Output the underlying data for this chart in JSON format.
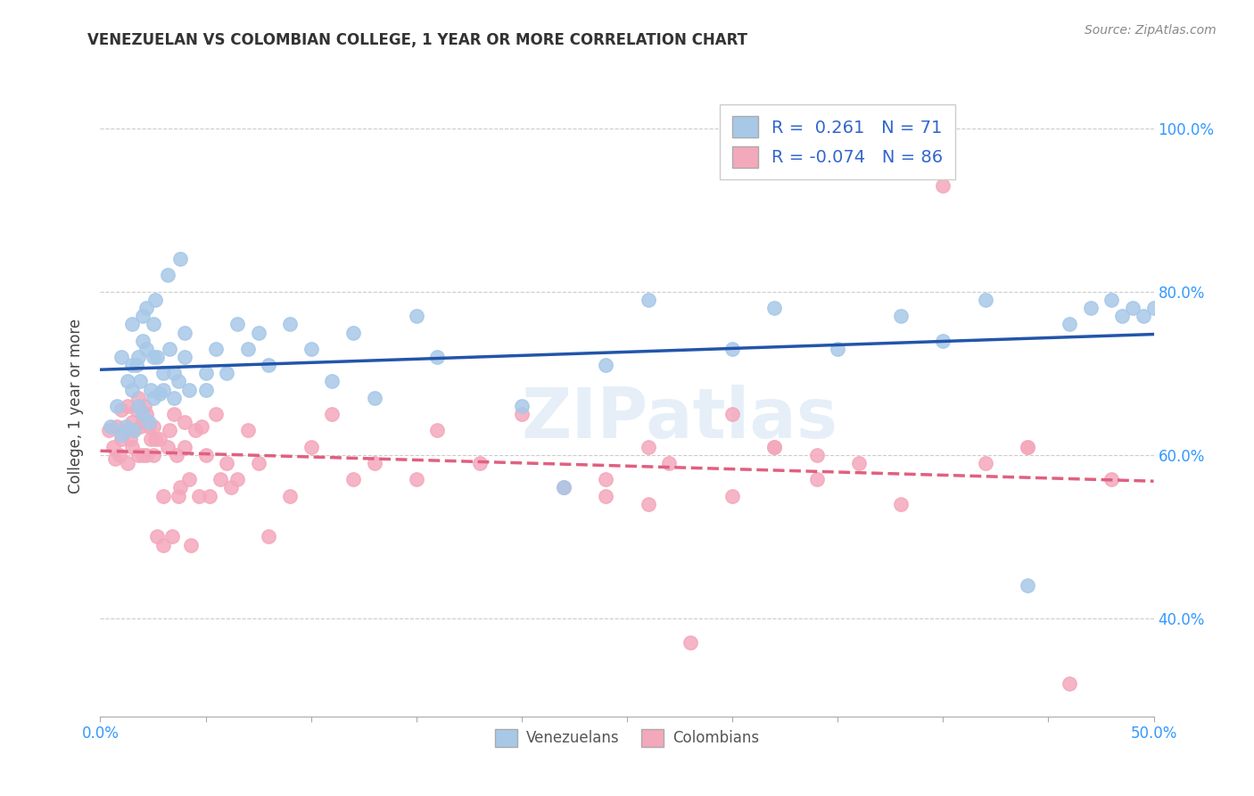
{
  "title": "VENEZUELAN VS COLOMBIAN COLLEGE, 1 YEAR OR MORE CORRELATION CHART",
  "source": "Source: ZipAtlas.com",
  "ylabel": "College, 1 year or more",
  "xlim": [
    0.0,
    0.5
  ],
  "ylim": [
    0.28,
    1.04
  ],
  "legend_R1": "0.261",
  "legend_N1": "71",
  "legend_R2": "-0.074",
  "legend_N2": "86",
  "color_venezuela": "#a8c8e8",
  "color_colombia": "#f4a8bc",
  "trendline_color_venezuela": "#2255aa",
  "trendline_color_colombia": "#e06080",
  "background_color": "#ffffff",
  "watermark": "ZIPatlas",
  "right_yticks": [
    0.4,
    0.6,
    0.8,
    1.0
  ],
  "right_ytick_labels": [
    "40.0%",
    "60.0%",
    "80.0%",
    "100.0%"
  ],
  "venezuelan_x": [
    0.005,
    0.008,
    0.01,
    0.01,
    0.012,
    0.013,
    0.015,
    0.015,
    0.015,
    0.016,
    0.017,
    0.018,
    0.018,
    0.019,
    0.02,
    0.02,
    0.02,
    0.022,
    0.022,
    0.023,
    0.024,
    0.025,
    0.025,
    0.025,
    0.026,
    0.027,
    0.028,
    0.03,
    0.03,
    0.032,
    0.033,
    0.035,
    0.035,
    0.037,
    0.038,
    0.04,
    0.04,
    0.042,
    0.05,
    0.05,
    0.055,
    0.06,
    0.065,
    0.07,
    0.075,
    0.08,
    0.09,
    0.1,
    0.11,
    0.12,
    0.13,
    0.15,
    0.16,
    0.2,
    0.22,
    0.24,
    0.26,
    0.3,
    0.32,
    0.35,
    0.38,
    0.4,
    0.42,
    0.44,
    0.46,
    0.47,
    0.48,
    0.485,
    0.49,
    0.495,
    0.5
  ],
  "venezuelan_y": [
    0.635,
    0.66,
    0.625,
    0.72,
    0.635,
    0.69,
    0.68,
    0.71,
    0.76,
    0.63,
    0.71,
    0.66,
    0.72,
    0.69,
    0.74,
    0.65,
    0.77,
    0.73,
    0.78,
    0.64,
    0.68,
    0.72,
    0.76,
    0.67,
    0.79,
    0.72,
    0.675,
    0.7,
    0.68,
    0.82,
    0.73,
    0.67,
    0.7,
    0.69,
    0.84,
    0.72,
    0.75,
    0.68,
    0.7,
    0.68,
    0.73,
    0.7,
    0.76,
    0.73,
    0.75,
    0.71,
    0.76,
    0.73,
    0.69,
    0.75,
    0.67,
    0.77,
    0.72,
    0.66,
    0.56,
    0.71,
    0.79,
    0.73,
    0.78,
    0.73,
    0.77,
    0.74,
    0.79,
    0.44,
    0.76,
    0.78,
    0.79,
    0.77,
    0.78,
    0.77,
    0.78
  ],
  "colombian_x": [
    0.004,
    0.006,
    0.007,
    0.008,
    0.009,
    0.01,
    0.01,
    0.012,
    0.013,
    0.013,
    0.014,
    0.015,
    0.015,
    0.016,
    0.017,
    0.018,
    0.018,
    0.019,
    0.02,
    0.02,
    0.021,
    0.022,
    0.022,
    0.023,
    0.024,
    0.025,
    0.025,
    0.026,
    0.027,
    0.028,
    0.03,
    0.03,
    0.032,
    0.033,
    0.034,
    0.035,
    0.036,
    0.037,
    0.038,
    0.04,
    0.04,
    0.042,
    0.043,
    0.045,
    0.047,
    0.048,
    0.05,
    0.052,
    0.055,
    0.057,
    0.06,
    0.062,
    0.065,
    0.07,
    0.075,
    0.08,
    0.09,
    0.1,
    0.11,
    0.12,
    0.13,
    0.15,
    0.16,
    0.18,
    0.2,
    0.22,
    0.24,
    0.26,
    0.27,
    0.28,
    0.3,
    0.32,
    0.34,
    0.36,
    0.38,
    0.4,
    0.42,
    0.44,
    0.24,
    0.26,
    0.3,
    0.32,
    0.34,
    0.44,
    0.46,
    0.48
  ],
  "colombian_y": [
    0.63,
    0.61,
    0.595,
    0.635,
    0.6,
    0.62,
    0.655,
    0.63,
    0.66,
    0.59,
    0.62,
    0.64,
    0.61,
    0.63,
    0.655,
    0.6,
    0.67,
    0.635,
    0.64,
    0.6,
    0.66,
    0.65,
    0.6,
    0.635,
    0.62,
    0.6,
    0.635,
    0.62,
    0.5,
    0.62,
    0.49,
    0.55,
    0.61,
    0.63,
    0.5,
    0.65,
    0.6,
    0.55,
    0.56,
    0.61,
    0.64,
    0.57,
    0.49,
    0.63,
    0.55,
    0.635,
    0.6,
    0.55,
    0.65,
    0.57,
    0.59,
    0.56,
    0.57,
    0.63,
    0.59,
    0.5,
    0.55,
    0.61,
    0.65,
    0.57,
    0.59,
    0.57,
    0.63,
    0.59,
    0.65,
    0.56,
    0.57,
    0.54,
    0.59,
    0.37,
    0.55,
    0.61,
    0.6,
    0.59,
    0.54,
    0.93,
    0.59,
    0.61,
    0.55,
    0.61,
    0.65,
    0.61,
    0.57,
    0.61,
    0.32,
    0.57
  ]
}
